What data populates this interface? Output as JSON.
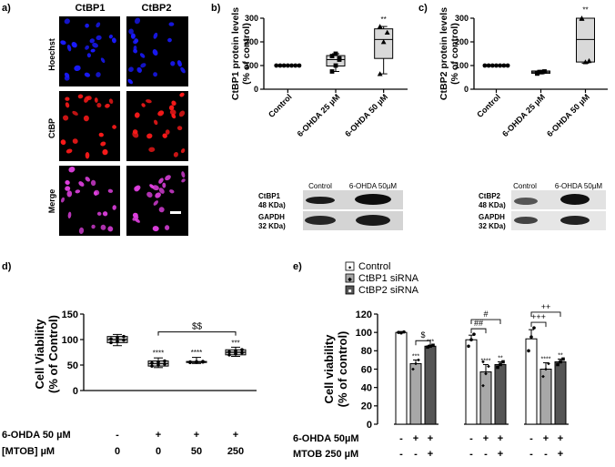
{
  "panels": {
    "a": "a)",
    "b": "b)",
    "c": "c)",
    "d": "d)",
    "e": "e)"
  },
  "micro": {
    "col_labels": [
      "CtBP1",
      "CtBP2"
    ],
    "row_labels": [
      "Hoechst",
      "CtBP",
      "Merge"
    ],
    "colors": {
      "Hoechst": "#1a1aff",
      "CtBP": "#ff1a1a",
      "Merge": "#e040e0"
    }
  },
  "blot_b": {
    "headers": [
      "Control",
      "6-OHDA 50µM"
    ],
    "rows": [
      {
        "l1": "CtBP1",
        "l2": "48 KDa)"
      },
      {
        "l1": "GAPDH",
        "l2": "32 KDa)"
      }
    ]
  },
  "blot_c": {
    "headers": [
      "Control",
      "6-OHDA 50µM"
    ],
    "rows": [
      {
        "l1": "CtBP2",
        "l2": "48 KDa)"
      },
      {
        "l1": "GAPDH",
        "l2": "32 KDa)"
      }
    ]
  },
  "chart_data": [
    {
      "panel": "b",
      "type": "box",
      "ylabel": [
        "CtBP1 protein levels",
        "(% of control)"
      ],
      "categories": [
        "Control",
        "6-OHDA 25 µM",
        "6-OHDA 50 µM"
      ],
      "ylim": [
        0,
        300
      ],
      "yticks": [
        0,
        100,
        200,
        300
      ],
      "boxes": [
        {
          "min": 100,
          "q1": 100,
          "median": 100,
          "q3": 100,
          "max": 100,
          "points": [
            100,
            100,
            100,
            100,
            100,
            100,
            100
          ],
          "marker": "circle"
        },
        {
          "min": 75,
          "q1": 98,
          "median": 125,
          "q3": 142,
          "max": 150,
          "points": [
            75,
            100,
            125,
            140,
            150,
            130
          ],
          "marker": "square"
        },
        {
          "min": 65,
          "q1": 130,
          "median": 210,
          "q3": 255,
          "max": 265,
          "points": [
            65,
            200,
            240,
            265
          ],
          "marker": "triangle"
        }
      ],
      "annotations": [
        {
          "category": 2,
          "text": "**",
          "y": 285
        }
      ]
    },
    {
      "panel": "c",
      "type": "box",
      "ylabel": [
        "CtBP2 protein levels",
        "(% of control)"
      ],
      "categories": [
        "Control",
        "6-OHDA 25 µM",
        "6-OHDA 50 µM"
      ],
      "ylim": [
        0,
        300
      ],
      "yticks": [
        0,
        100,
        200,
        300
      ],
      "boxes": [
        {
          "min": 100,
          "q1": 100,
          "median": 100,
          "q3": 100,
          "max": 100,
          "points": [
            100,
            100,
            100,
            100,
            100,
            100,
            100
          ],
          "marker": "circle"
        },
        {
          "min": 65,
          "q1": 67,
          "median": 72,
          "q3": 77,
          "max": 80,
          "points": [
            68,
            72,
            75,
            66
          ],
          "marker": "square"
        },
        {
          "min": 110,
          "q1": 115,
          "median": 210,
          "q3": 300,
          "max": 300,
          "points": [
            300,
            115,
            120,
            298
          ],
          "marker": "triangle"
        }
      ],
      "annotations": [
        {
          "category": 2,
          "text": "**",
          "y": 325
        }
      ]
    },
    {
      "panel": "d",
      "type": "box",
      "ylabel": [
        "Cell Viability",
        "(% of Control)"
      ],
      "ylim": [
        0,
        150
      ],
      "yticks": [
        0,
        50,
        100,
        150
      ],
      "row_labels": [
        "6-OHDA 50 µM",
        "[MTOB] µM"
      ],
      "row_values": [
        [
          "-",
          "+",
          "+",
          "+"
        ],
        [
          "0",
          "0",
          "50",
          "250"
        ]
      ],
      "boxes": [
        {
          "min": 88,
          "q1": 94,
          "median": 100,
          "q3": 106,
          "max": 110
        },
        {
          "min": 45,
          "q1": 48,
          "median": 53,
          "q3": 58,
          "max": 64
        },
        {
          "min": 53,
          "q1": 55,
          "median": 56,
          "q3": 57,
          "max": 65
        },
        {
          "min": 67,
          "q1": 70,
          "median": 75,
          "q3": 80,
          "max": 85
        }
      ],
      "annotations": [
        {
          "category": 1,
          "text": "****",
          "y": 69
        },
        {
          "category": 2,
          "text": "****",
          "y": 70
        },
        {
          "category": 3,
          "text": "***",
          "y": 88
        }
      ],
      "bracket": {
        "from": 1,
        "to": 3,
        "text": "$$",
        "y": 115
      }
    },
    {
      "panel": "e",
      "type": "bar",
      "ylabel": [
        "Cell viability",
        "(% of control)"
      ],
      "ylim": [
        0,
        120
      ],
      "yticks": [
        0,
        20,
        40,
        60,
        80,
        100,
        120
      ],
      "legend": [
        {
          "label": "Control",
          "color": "#ffffff",
          "marker": "●"
        },
        {
          "label": "CtBP1 siRNA",
          "color": "#a8a8a8",
          "marker": "◆"
        },
        {
          "label": "CtBP2 siRNA",
          "color": "#555555",
          "marker": "■"
        }
      ],
      "row_labels": [
        "6-OHDA 50µM",
        "MTOB 250 µM"
      ],
      "row_values": [
        [
          "-",
          "+",
          "+",
          "-",
          "+",
          "+",
          "-",
          "+",
          "+"
        ],
        [
          "-",
          "-",
          "+",
          "-",
          "-",
          "+",
          "-",
          "-",
          "+"
        ]
      ],
      "bars": [
        {
          "group": 0,
          "value": 100,
          "err": 1,
          "points": [
            100,
            99.5,
            100.5
          ],
          "label": ""
        },
        {
          "group": 0,
          "value": 66,
          "err": 4,
          "points": [
            60,
            66,
            70
          ],
          "label": "***"
        },
        {
          "group": 0,
          "value": 85,
          "err": 1,
          "points": [
            84,
            85,
            86
          ],
          "label": "***"
        },
        {
          "group": 1,
          "value": 92,
          "err": 5,
          "points": [
            85,
            92,
            98
          ],
          "label": ""
        },
        {
          "group": 1,
          "value": 57,
          "err": 8,
          "points": [
            42,
            55,
            63,
            68
          ],
          "label": "****"
        },
        {
          "group": 1,
          "value": 65,
          "err": 3,
          "points": [
            62,
            65,
            68
          ],
          "label": "**"
        },
        {
          "group": 2,
          "value": 93,
          "err": 10,
          "points": [
            80,
            95,
            105
          ],
          "label": ""
        },
        {
          "group": 2,
          "value": 60,
          "err": 7,
          "points": [
            52,
            60,
            66
          ],
          "label": "****"
        },
        {
          "group": 2,
          "value": 68,
          "err": 3,
          "points": [
            65,
            68,
            71
          ],
          "label": "**"
        }
      ],
      "brackets": [
        {
          "from": 1,
          "to": 2,
          "text": "$",
          "y": 91
        },
        {
          "from": 3,
          "to": 4,
          "text": "##",
          "y": 104
        },
        {
          "from": 3,
          "to": 5,
          "text": "#",
          "y": 114
        },
        {
          "from": 6,
          "to": 7,
          "text": "+++",
          "y": 111
        },
        {
          "from": 6,
          "to": 8,
          "text": "++",
          "y": 122
        }
      ]
    }
  ]
}
